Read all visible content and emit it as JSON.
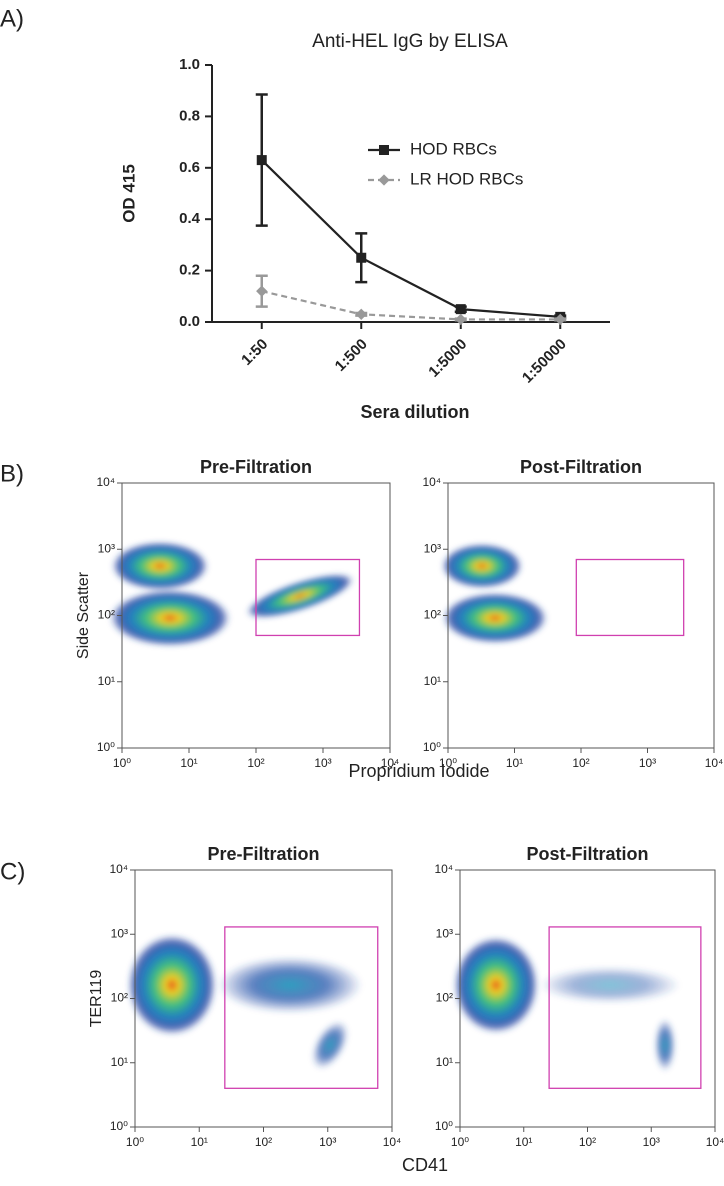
{
  "chart_data": [
    {
      "type": "line",
      "panel": "A)",
      "title": "Anti-HEL IgG by ELISA",
      "xlabel": "Sera dilution",
      "ylabel": "OD 415",
      "categories": [
        "1:50",
        "1:500",
        "1:5000",
        "1:50000"
      ],
      "series": [
        {
          "name": "HOD RBCs",
          "color": "#222222",
          "values": [
            0.63,
            0.25,
            0.05,
            0.02
          ],
          "errors": [
            0.255,
            0.095,
            0.01,
            0.005
          ]
        },
        {
          "name": "LR HOD RBCs",
          "color": "#999999",
          "values": [
            0.12,
            0.03,
            0.01,
            0.01
          ],
          "errors": [
            0.06,
            0.005,
            0.003,
            0.003
          ]
        }
      ],
      "ylim": [
        0,
        1
      ],
      "yticks": [
        {
          "value": 0,
          "label": "0.0"
        },
        0.2,
        0.4,
        0.6,
        0.8,
        {
          "value": 1,
          "label": "1.0"
        }
      ]
    },
    {
      "type": "density",
      "panel": "B)",
      "title": "Pre-Filtration",
      "xlabel": "Propridium Iodide",
      "ylabel": "Side Scatter",
      "xlim": [
        1,
        10000
      ],
      "ylim": [
        1,
        10000
      ],
      "xticks": [
        {
          "value": 1,
          "label": "10⁰"
        },
        {
          "value": 10,
          "label": "10¹"
        },
        {
          "value": 100,
          "label": "10²"
        },
        {
          "value": 1000,
          "label": "10³"
        },
        {
          "value": 10000,
          "label": "10⁴"
        }
      ],
      "yticks": [
        {
          "value": 1,
          "label": "10⁰"
        },
        {
          "value": 10,
          "label": "10¹"
        },
        {
          "value": 100,
          "label": "10²"
        },
        {
          "value": 1000,
          "label": "10³"
        },
        {
          "value": 10000,
          "label": "10⁴"
        }
      ],
      "gate": {
        "x": [
          100,
          3500
        ],
        "y": [
          50,
          700
        ]
      },
      "gate_color": "#d040b0"
    },
    {
      "type": "density",
      "title": "Post-Filtration",
      "xlim": [
        1,
        10000
      ],
      "ylim": [
        1,
        10000
      ],
      "xticks": [
        {
          "value": 1,
          "label": "10⁰"
        },
        {
          "value": 10,
          "label": "10¹"
        },
        {
          "value": 100,
          "label": "10²"
        },
        {
          "value": 1000,
          "label": "10³"
        },
        {
          "value": 10000,
          "label": "10⁴"
        }
      ],
      "yticks": [
        {
          "value": 1,
          "label": "10⁰"
        },
        {
          "value": 10,
          "label": "10¹"
        },
        {
          "value": 100,
          "label": "10²"
        },
        {
          "value": 1000,
          "label": "10³"
        },
        {
          "value": 10000,
          "label": "10⁴"
        }
      ],
      "gate": {
        "x": [
          85,
          3500
        ],
        "y": [
          50,
          700
        ]
      },
      "gate_color": "#d040b0"
    },
    {
      "type": "density",
      "panel": "C)",
      "title": "Pre-Filtration",
      "xlabel": "CD41",
      "ylabel": "TER119",
      "xlim": [
        1,
        10000
      ],
      "ylim": [
        1,
        10000
      ],
      "xticks": [
        {
          "value": 1,
          "label": "10⁰"
        },
        {
          "value": 10,
          "label": "10¹"
        },
        {
          "value": 100,
          "label": "10²"
        },
        {
          "value": 1000,
          "label": "10³"
        },
        {
          "value": 10000,
          "label": "10⁴"
        }
      ],
      "yticks": [
        {
          "value": 1,
          "label": "10⁰"
        },
        {
          "value": 10,
          "label": "10¹"
        },
        {
          "value": 100,
          "label": "10²"
        },
        {
          "value": 1000,
          "label": "10³"
        },
        {
          "value": 10000,
          "label": "10⁴"
        }
      ],
      "gate": {
        "x": [
          25,
          6000
        ],
        "y": [
          4,
          1300
        ]
      },
      "gate_color": "#d040b0"
    },
    {
      "type": "density",
      "title": "Post-Filtration",
      "xlim": [
        1,
        10000
      ],
      "ylim": [
        1,
        10000
      ],
      "xticks": [
        {
          "value": 1,
          "label": "10⁰"
        },
        {
          "value": 10,
          "label": "10¹"
        },
        {
          "value": 100,
          "label": "10²"
        },
        {
          "value": 1000,
          "label": "10³"
        },
        {
          "value": 10000,
          "label": "10⁴"
        }
      ],
      "yticks": [
        {
          "value": 1,
          "label": "10⁰"
        },
        {
          "value": 10,
          "label": "10¹"
        },
        {
          "value": 100,
          "label": "10²"
        },
        {
          "value": 1000,
          "label": "10³"
        },
        {
          "value": 10000,
          "label": "10⁴"
        }
      ],
      "gate": {
        "x": [
          25,
          6000
        ],
        "y": [
          4,
          1300
        ]
      },
      "gate_color": "#d040b0"
    }
  ]
}
